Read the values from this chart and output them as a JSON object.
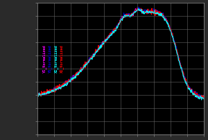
{
  "plot_bg_color": "#000000",
  "fig_bg_color": "#2a2a2a",
  "grid_color": "#666666",
  "legend_labels": [
    "YI_Normalized",
    "YQ_Normalized",
    "XI_Normalized",
    "XI_Normalized"
  ],
  "legend_colors": [
    "#ff00ff",
    "#0000cc",
    "#00ffff",
    "#ff0000"
  ],
  "line_colors": [
    "#ff00ff",
    "#0000cc",
    "#00ffff",
    "#ff0000"
  ],
  "n_points": 500,
  "xlim": [
    0,
    1
  ],
  "ylim": [
    0,
    1
  ]
}
